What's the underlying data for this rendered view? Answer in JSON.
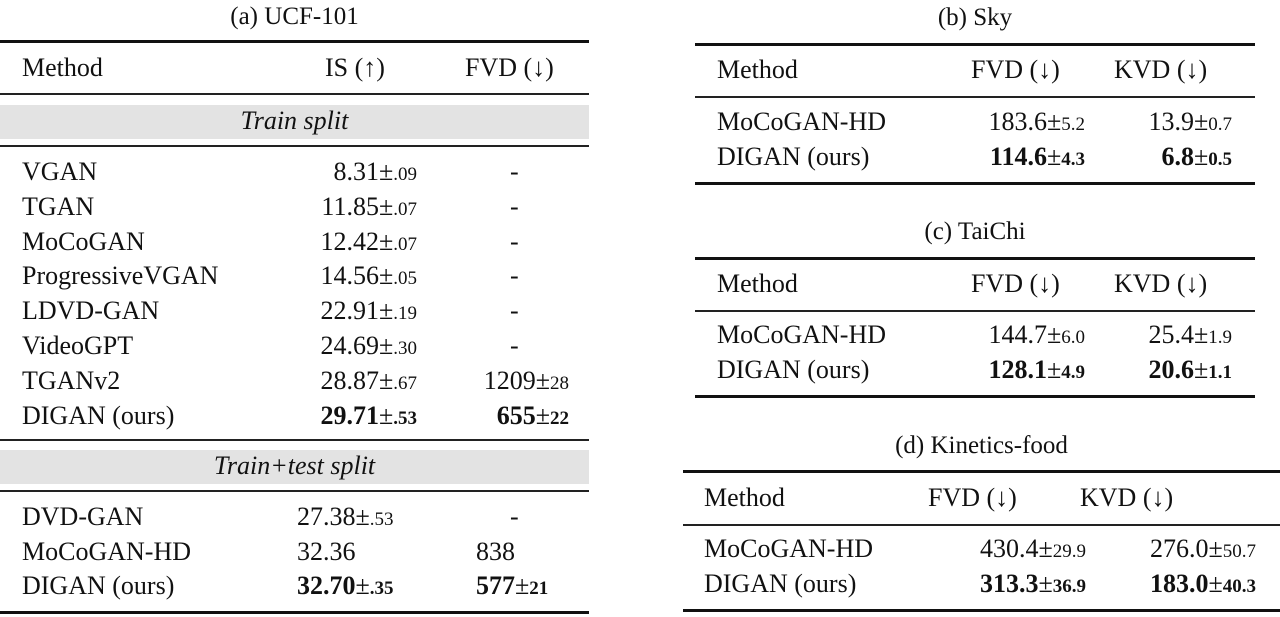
{
  "tables": {
    "ucf": {
      "caption": "(a) UCF-101",
      "headers": [
        "Method",
        "IS (↑)",
        "FVD (↓)"
      ],
      "section1": "Train split",
      "rows1": [
        {
          "method": "VGAN",
          "is": "8.31",
          "is_sd": ".09",
          "fvd": "-",
          "fvd_sd": ""
        },
        {
          "method": "TGAN",
          "is": "11.85",
          "is_sd": ".07",
          "fvd": "-",
          "fvd_sd": ""
        },
        {
          "method": "MoCoGAN",
          "is": "12.42",
          "is_sd": ".07",
          "fvd": "-",
          "fvd_sd": ""
        },
        {
          "method": "ProgressiveVGAN",
          "is": "14.56",
          "is_sd": ".05",
          "fvd": "-",
          "fvd_sd": ""
        },
        {
          "method": "LDVD-GAN",
          "is": "22.91",
          "is_sd": ".19",
          "fvd": "-",
          "fvd_sd": ""
        },
        {
          "method": "VideoGPT",
          "is": "24.69",
          "is_sd": ".30",
          "fvd": "-",
          "fvd_sd": ""
        },
        {
          "method": "TGANv2",
          "is": "28.87",
          "is_sd": ".67",
          "fvd": "1209",
          "fvd_sd": "28"
        },
        {
          "method": "DIGAN (ours)",
          "is": "29.71",
          "is_sd": ".53",
          "fvd": "655",
          "fvd_sd": "22"
        }
      ],
      "section2": "Train+test split",
      "rows2": [
        {
          "method": "DVD-GAN",
          "is": "27.38",
          "is_sd": ".53",
          "fvd": "-",
          "fvd_sd": ""
        },
        {
          "method": "MoCoGAN-HD",
          "is": "32.36",
          "is_sd": "",
          "fvd": "838",
          "fvd_sd": ""
        },
        {
          "method": "DIGAN (ours)",
          "is": "32.70",
          "is_sd": ".35",
          "fvd": "577",
          "fvd_sd": "21"
        }
      ]
    },
    "sky": {
      "caption": "(b) Sky",
      "headers": [
        "Method",
        "FVD (↓)",
        "KVD (↓)"
      ],
      "rows": [
        {
          "method": "MoCoGAN-HD",
          "fvd": "183.6",
          "fvd_sd": "5.2",
          "kvd": "13.9",
          "kvd_sd": "0.7"
        },
        {
          "method": "DIGAN (ours)",
          "fvd": "114.6",
          "fvd_sd": "4.3",
          "kvd": "6.8",
          "kvd_sd": "0.5"
        }
      ]
    },
    "taichi": {
      "caption": "(c) TaiChi",
      "headers": [
        "Method",
        "FVD (↓)",
        "KVD (↓)"
      ],
      "rows": [
        {
          "method": "MoCoGAN-HD",
          "fvd": "144.7",
          "fvd_sd": "6.0",
          "kvd": "25.4",
          "kvd_sd": "1.9"
        },
        {
          "method": "DIGAN (ours)",
          "fvd": "128.1",
          "fvd_sd": "4.9",
          "kvd": "20.6",
          "kvd_sd": "1.1"
        }
      ]
    },
    "kinetics": {
      "caption": "(d) Kinetics-food",
      "headers": [
        "Method",
        "FVD (↓)",
        "KVD (↓)"
      ],
      "rows": [
        {
          "method": "MoCoGAN-HD",
          "fvd": "430.4",
          "fvd_sd": "29.9",
          "kvd": "276.0",
          "kvd_sd": "50.7"
        },
        {
          "method": "DIGAN (ours)",
          "fvd": "313.3",
          "fvd_sd": "36.9",
          "kvd": "183.0",
          "kvd_sd": "40.3"
        }
      ]
    }
  },
  "symbols": {
    "pm": "±"
  }
}
